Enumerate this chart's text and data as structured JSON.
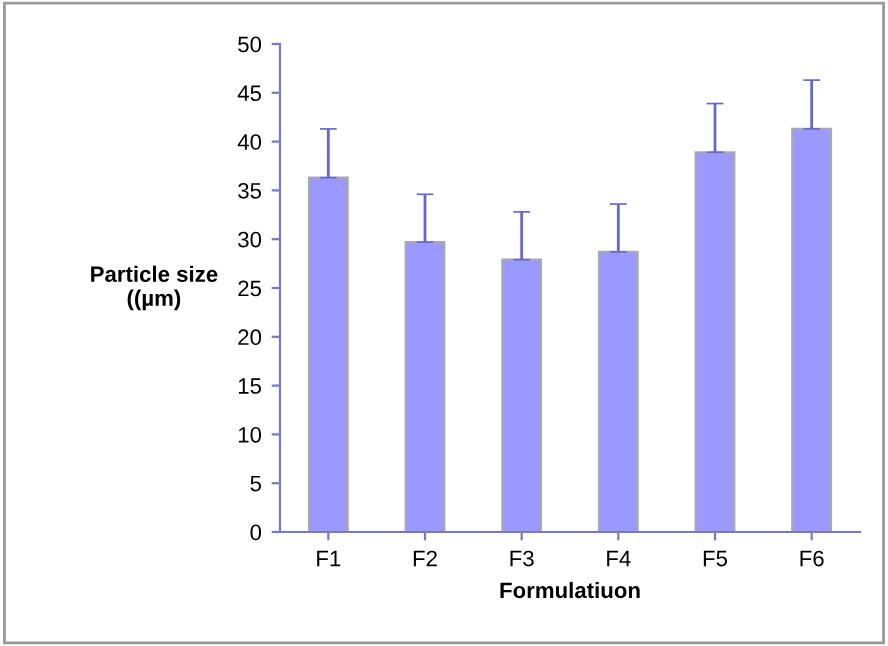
{
  "chart_data": {
    "type": "bar",
    "xlabel": "Formulatiuon",
    "ylabel": "Particle size\n((µm)",
    "categories": [
      "F1",
      "F2",
      "F3",
      "F4",
      "F5",
      "F6"
    ],
    "values": [
      36.3,
      29.7,
      27.9,
      28.7,
      38.9,
      41.3
    ],
    "errors": [
      [
        36.3,
        41.3
      ],
      [
        29.7,
        34.6
      ],
      [
        27.9,
        32.8
      ],
      [
        28.7,
        33.6
      ],
      [
        38.9,
        43.9
      ],
      [
        41.3,
        46.3
      ]
    ],
    "color": "#9999ff",
    "ylim": [
      0,
      50
    ],
    "yticks": [
      0,
      5,
      10,
      15,
      20,
      25,
      30,
      35,
      40,
      45,
      50
    ],
    "grid": false,
    "legend": false
  }
}
